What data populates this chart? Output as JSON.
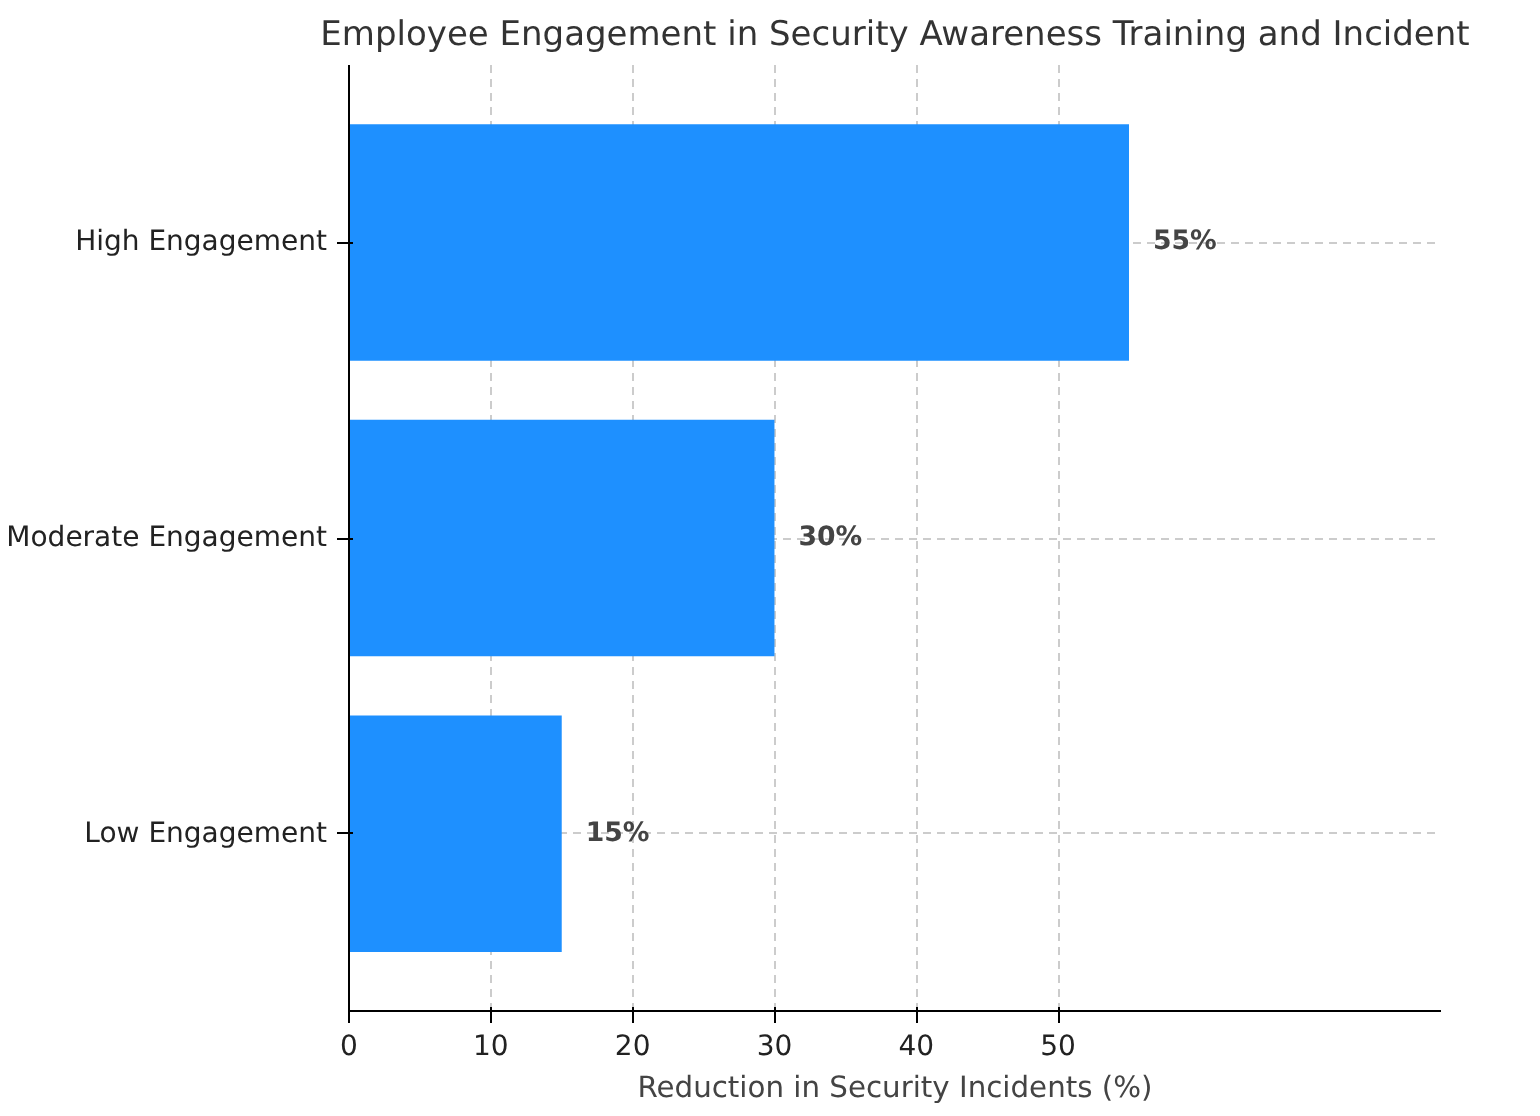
{
  "chart_data": {
    "type": "bar",
    "orientation": "horizontal",
    "title": "Employee Engagement in Security Awareness Training and Incident",
    "xlabel": "Reduction in Security Incidents (%)",
    "categories": [
      "High Engagement",
      "Moderate Engagement",
      "Low Engagement"
    ],
    "values": [
      55,
      30,
      15
    ],
    "value_labels": [
      "55%",
      "30%",
      "15%"
    ],
    "color": "#1e90ff",
    "xlim": [
      0,
      77
    ],
    "xticks": [
      0,
      10,
      20,
      30,
      40,
      50
    ],
    "grid": true
  }
}
